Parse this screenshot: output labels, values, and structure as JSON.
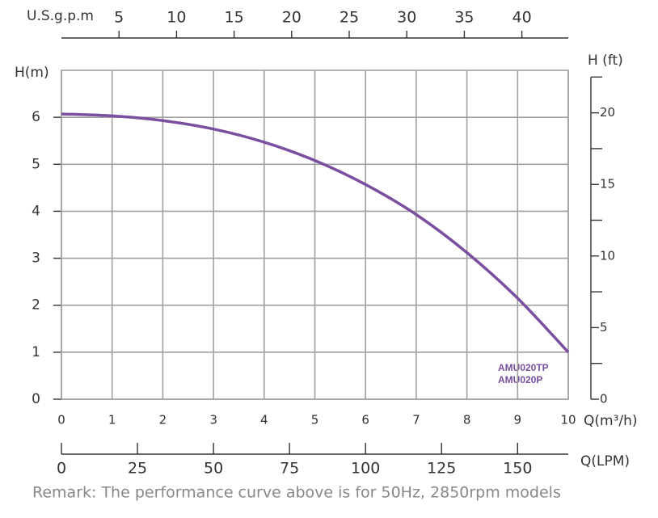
{
  "chart_data": {
    "type": "line",
    "x": [
      0,
      1,
      2,
      3,
      4,
      5,
      6,
      7,
      8,
      9,
      10
    ],
    "series": [
      {
        "labels": [
          "AMU020TP",
          "AMU020P"
        ],
        "color": "#7b4fa0",
        "values": [
          6.07,
          6.03,
          5.93,
          5.75,
          5.47,
          5.08,
          4.57,
          3.93,
          3.12,
          2.15,
          1.0
        ]
      }
    ],
    "xlim": [
      0,
      10
    ],
    "xticks": [
      0,
      1,
      2,
      3,
      4,
      5,
      6,
      7,
      8,
      9,
      10
    ],
    "xlabel": "Q(m³/h)",
    "ylim": [
      0,
      7
    ],
    "yticks": [
      0,
      1,
      2,
      3,
      4,
      5,
      6
    ],
    "ylabel": "H(m)",
    "y2lim": [
      0,
      22.97
    ],
    "y2ticks": [
      0,
      5,
      10,
      15,
      20
    ],
    "y2_minor_ticks": [
      2.5,
      7.5,
      12.5,
      17.5,
      22.5
    ],
    "y2label": "H (ft)",
    "top_axis": {
      "label": "U.S.g.p.m",
      "lim": [
        0,
        44.03
      ],
      "ticks": [
        5,
        10,
        15,
        20,
        25,
        30,
        35,
        40
      ]
    },
    "bottom_axis2": {
      "label": "Q(LPM)",
      "lim": [
        0,
        166.67
      ],
      "ticks": [
        0,
        25,
        50,
        75,
        100,
        125,
        150
      ]
    },
    "grid": true,
    "note": "Remark: The performance curve above is for 50Hz, 2850rpm models"
  }
}
